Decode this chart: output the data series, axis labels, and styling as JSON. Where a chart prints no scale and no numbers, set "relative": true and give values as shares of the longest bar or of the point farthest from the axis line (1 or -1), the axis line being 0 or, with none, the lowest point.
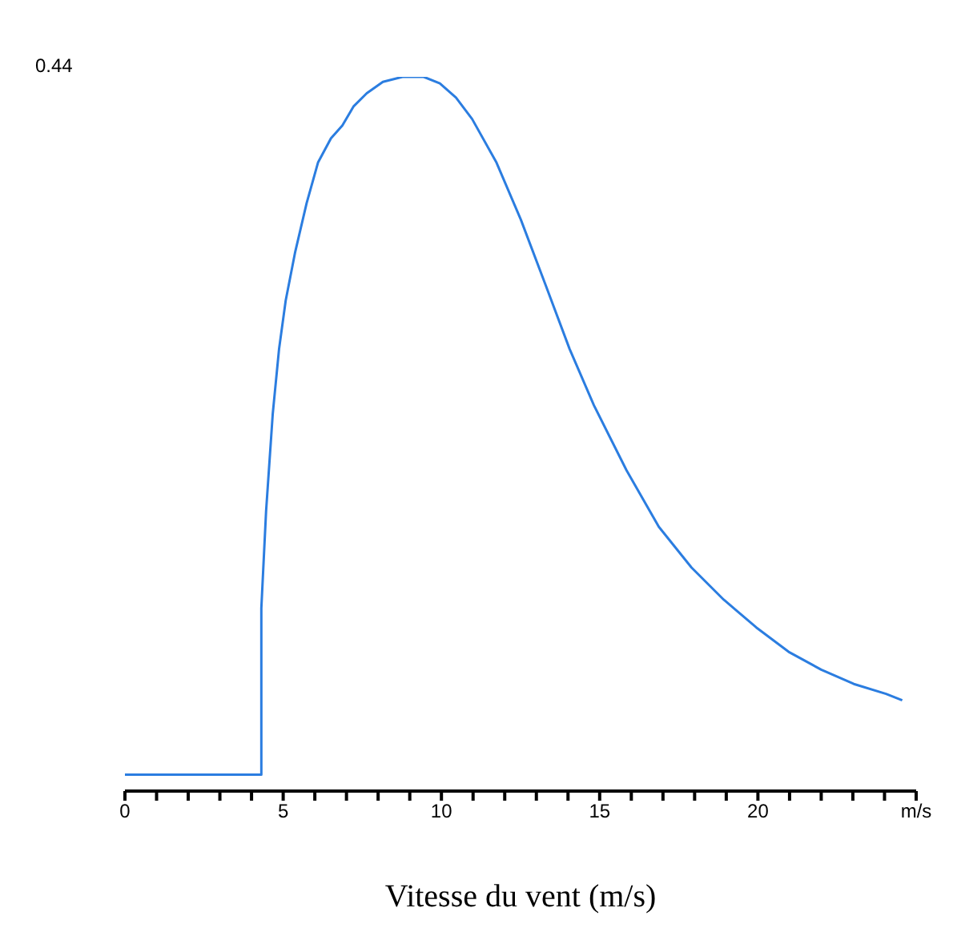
{
  "chart_data": {
    "type": "line",
    "relative": true,
    "xlabel": "Vitesse du vent (m/s)",
    "annotations": [
      "0.44"
    ],
    "xlim": [
      0,
      25
    ],
    "xticks": [
      0,
      {
        "value": 1,
        "label": null
      },
      {
        "value": 2,
        "label": null
      },
      {
        "value": 3,
        "label": null
      },
      {
        "value": 4,
        "label": null
      },
      5,
      {
        "value": 6,
        "label": null
      },
      {
        "value": 7,
        "label": null
      },
      {
        "value": 8,
        "label": null
      },
      {
        "value": 9,
        "label": null
      },
      10,
      {
        "value": 11,
        "label": null
      },
      {
        "value": 12,
        "label": null
      },
      {
        "value": 13,
        "label": null
      },
      {
        "value": 14,
        "label": null
      },
      15,
      {
        "value": 16,
        "label": null
      },
      {
        "value": 17,
        "label": null
      },
      {
        "value": 18,
        "label": null
      },
      {
        "value": 19,
        "label": null
      },
      20,
      {
        "value": 21,
        "label": null
      },
      {
        "value": 22,
        "label": null
      },
      {
        "value": 23,
        "label": null
      },
      {
        "value": 24,
        "label": null
      },
      {
        "value": 25,
        "label": "m/s"
      }
    ],
    "grid": false,
    "legend": false,
    "marker": "none",
    "line_style": "solid",
    "series": [
      {
        "color": "#2b7de0",
        "x": [
          0,
          4.31,
          4.31,
          4.46,
          4.67,
          4.87,
          5.08,
          5.38,
          5.74,
          6.1,
          6.51,
          6.87,
          7.23,
          7.64,
          8.15,
          8.77,
          9.44,
          9.95,
          10.46,
          10.97,
          11.74,
          12.51,
          13.28,
          14.05,
          14.82,
          15.85,
          16.87,
          17.9,
          18.92,
          19.95,
          20.97,
          22.0,
          23.03,
          24.05,
          24.56
        ],
        "values": [
          0.023,
          0.023,
          0.256,
          0.392,
          0.528,
          0.619,
          0.687,
          0.755,
          0.823,
          0.88,
          0.914,
          0.932,
          0.959,
          0.977,
          0.993,
          1,
          1,
          0.991,
          0.971,
          0.941,
          0.88,
          0.8,
          0.71,
          0.619,
          0.54,
          0.449,
          0.37,
          0.313,
          0.268,
          0.229,
          0.195,
          0.17,
          0.15,
          0.136,
          0.127
        ]
      }
    ]
  }
}
